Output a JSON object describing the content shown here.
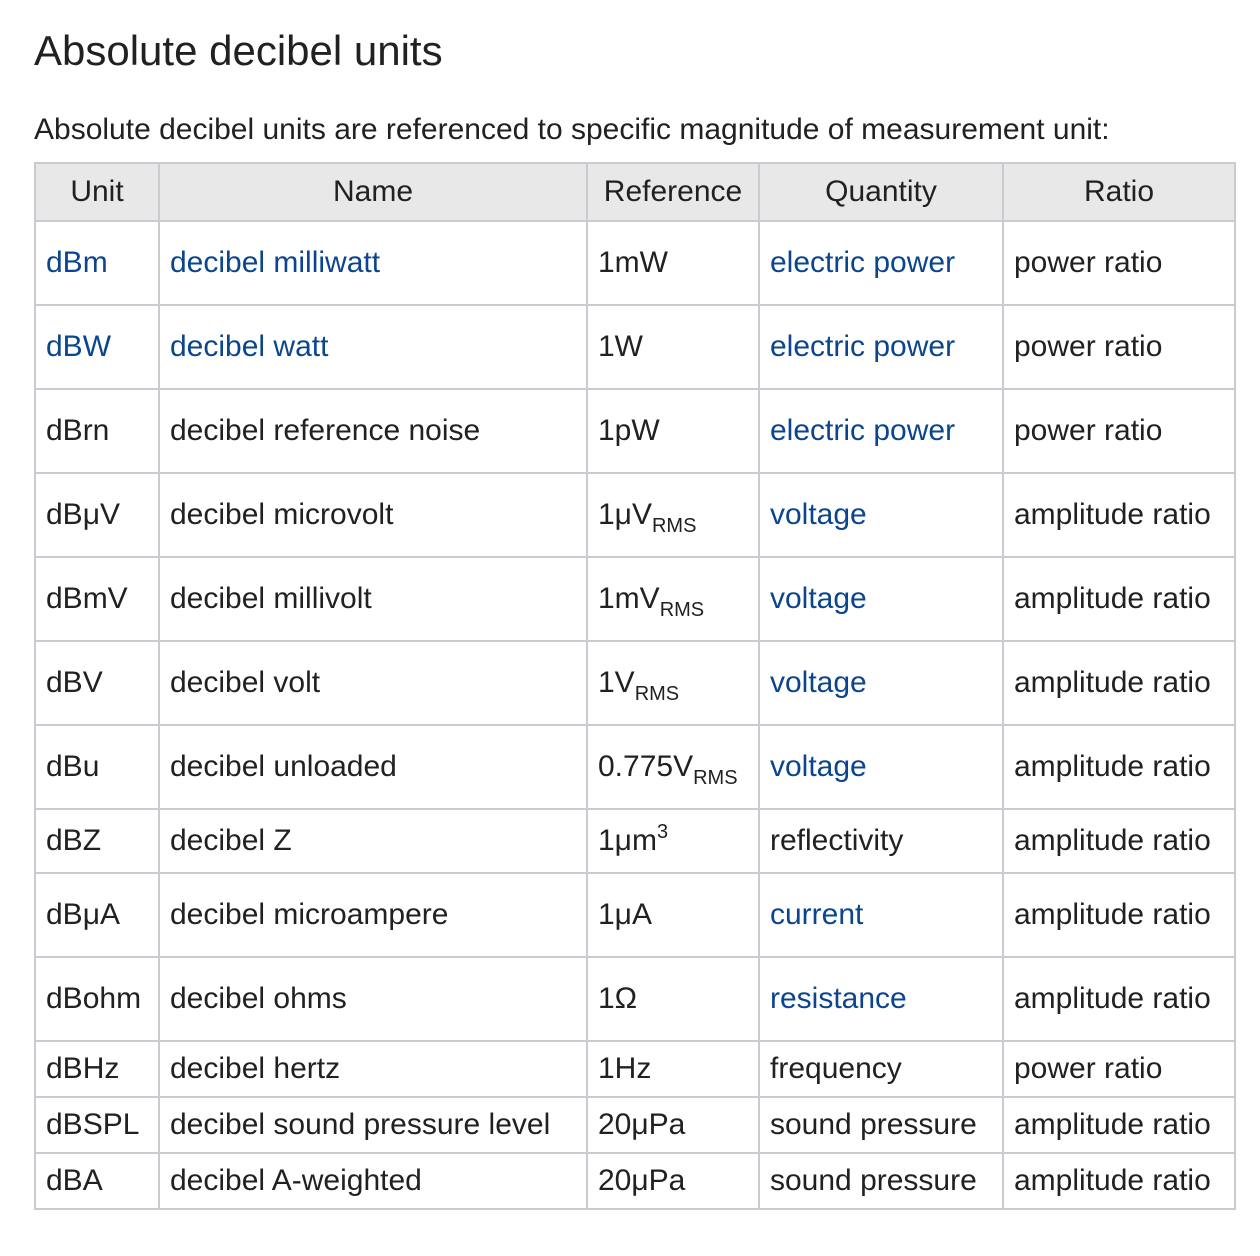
{
  "page": {
    "title": "Absolute decibel units",
    "intro": "Absolute decibel units are referenced to specific magnitude of measurement unit:"
  },
  "table": {
    "headers": [
      "Unit",
      "Name",
      "Reference",
      "Quantity",
      "Ratio"
    ],
    "rows": [
      {
        "unit": "dBm",
        "name": "decibel milliwatt",
        "ref": "1mW",
        "ref_sub": "",
        "ref_sup": "",
        "quantity": "electric power",
        "ratio": "power ratio"
      },
      {
        "unit": "dBW",
        "name": "decibel watt",
        "ref": "1W",
        "ref_sub": "",
        "ref_sup": "",
        "quantity": "electric power",
        "ratio": "power ratio"
      },
      {
        "unit": "dBrn",
        "name": "decibel reference noise",
        "ref": "1pW",
        "ref_sub": "",
        "ref_sup": "",
        "quantity": "electric power",
        "ratio": "power ratio"
      },
      {
        "unit": "dBμV",
        "name": "decibel microvolt",
        "ref": "1μV",
        "ref_sub": "RMS",
        "ref_sup": "",
        "quantity": "voltage",
        "ratio": "amplitude ratio"
      },
      {
        "unit": "dBmV",
        "name": "decibel millivolt",
        "ref": "1mV",
        "ref_sub": "RMS",
        "ref_sup": "",
        "quantity": "voltage",
        "ratio": "amplitude ratio"
      },
      {
        "unit": "dBV",
        "name": "decibel volt",
        "ref": "1V",
        "ref_sub": "RMS",
        "ref_sup": "",
        "quantity": "voltage",
        "ratio": "amplitude ratio"
      },
      {
        "unit": "dBu",
        "name": "decibel unloaded",
        "ref": "0.775V",
        "ref_sub": "RMS",
        "ref_sup": "",
        "quantity": "voltage",
        "ratio": "amplitude ratio"
      },
      {
        "unit": "dBZ",
        "name": "decibel Z",
        "ref": "1μm",
        "ref_sub": "",
        "ref_sup": "3",
        "quantity": "reflectivity",
        "ratio": "amplitude ratio"
      },
      {
        "unit": "dBμA",
        "name": "decibel microampere",
        "ref": "1μA",
        "ref_sub": "",
        "ref_sup": "",
        "quantity": "current",
        "ratio": "amplitude ratio"
      },
      {
        "unit": "dBohm",
        "name": "decibel ohms",
        "ref": "1Ω",
        "ref_sub": "",
        "ref_sup": "",
        "quantity": "resistance",
        "ratio": "amplitude ratio"
      },
      {
        "unit": "dBHz",
        "name": "decibel hertz",
        "ref": "1Hz",
        "ref_sub": "",
        "ref_sup": "",
        "quantity": "frequency",
        "ratio": "power ratio"
      },
      {
        "unit": "dBSPL",
        "name": "decibel sound pressure level",
        "ref": "20μPa",
        "ref_sub": "",
        "ref_sup": "",
        "quantity": "sound pressure",
        "ratio": "amplitude ratio"
      },
      {
        "unit": "dBA",
        "name": "decibel A-weighted",
        "ref": "20μPa",
        "ref_sub": "",
        "ref_sup": "",
        "quantity": "sound pressure",
        "ratio": "amplitude ratio"
      }
    ]
  },
  "colors": {
    "link": "#0b458f",
    "header_bg": "#e8e8e8",
    "border": "#c8ccd1"
  }
}
